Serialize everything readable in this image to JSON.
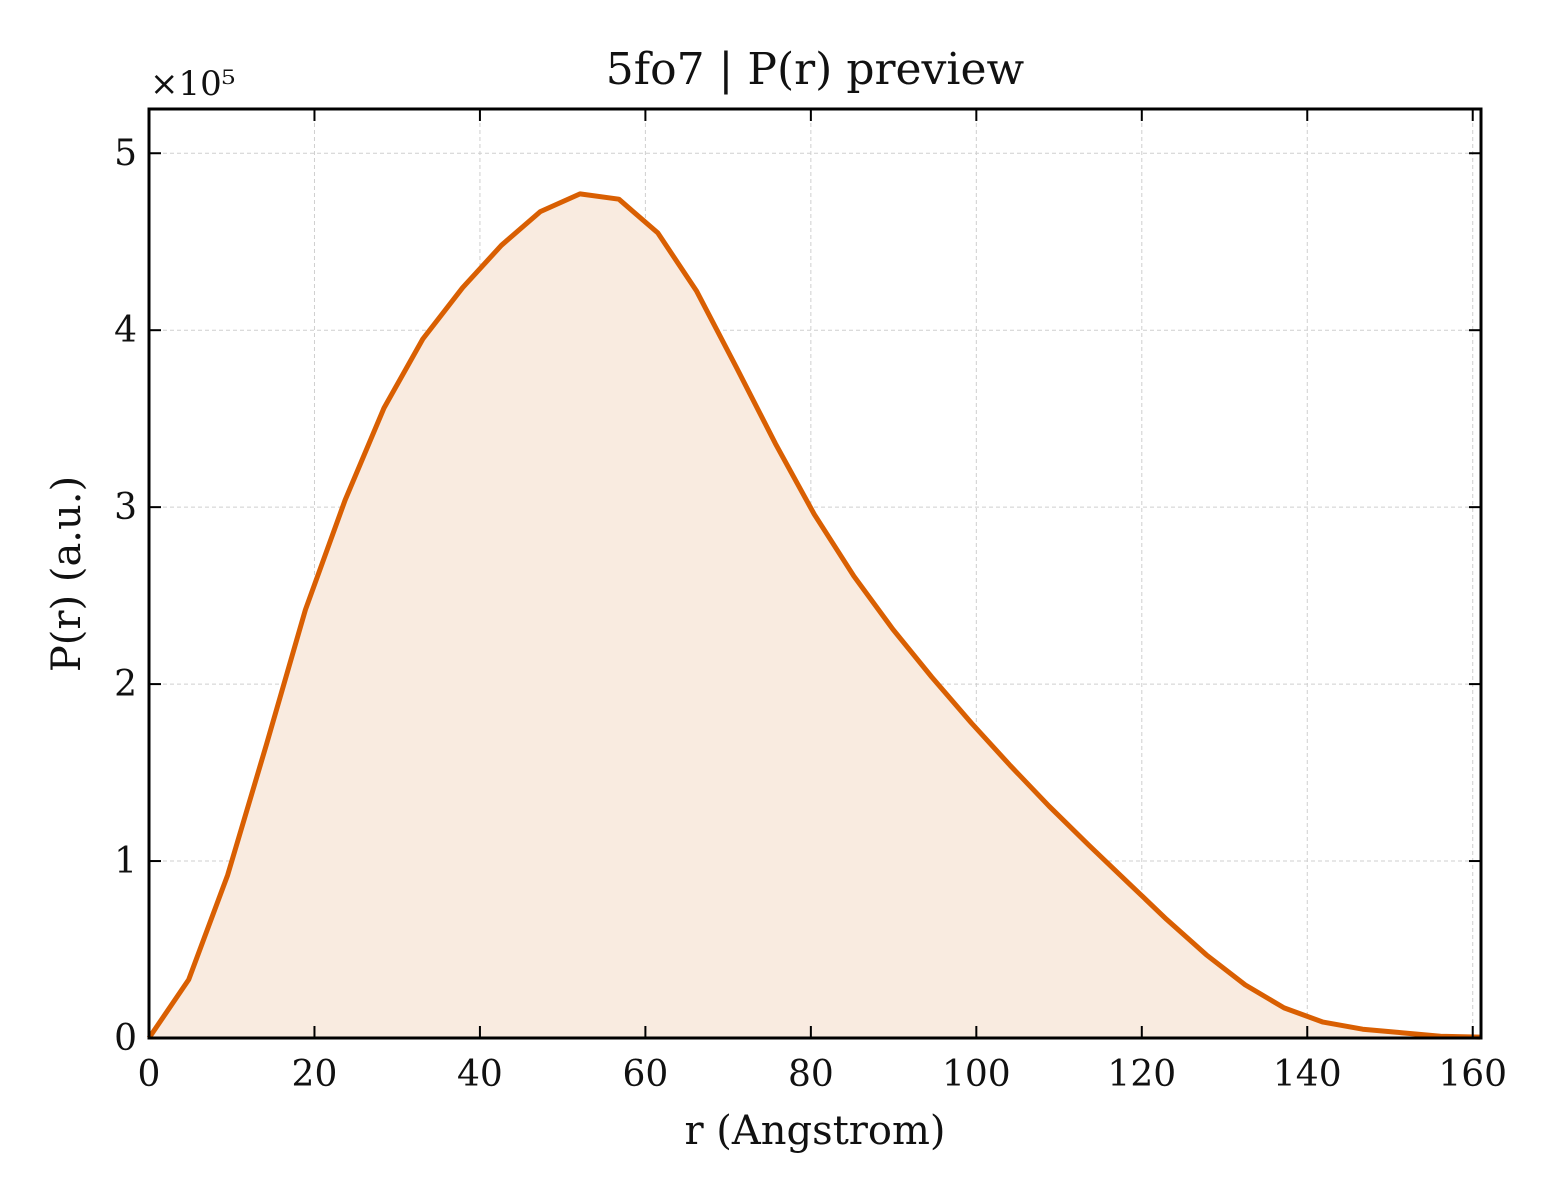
{
  "chart_data": {
    "type": "area",
    "title": "5fo7 | P(r) preview",
    "xlabel": "r (Angstrom)",
    "ylabel": "P(r) (a.u.)",
    "y_scale_label": "×10⁵",
    "xlim": [
      0,
      161
    ],
    "ylim": [
      0,
      525000
    ],
    "xticks": [
      0,
      20,
      40,
      60,
      80,
      100,
      120,
      140,
      160
    ],
    "yticks": [
      0,
      100000,
      200000,
      300000,
      400000,
      500000
    ],
    "ytick_labels": [
      "0",
      "1",
      "2",
      "3",
      "4",
      "5"
    ],
    "grid": true,
    "line_color": "#d95f02",
    "fill_color": "#f9ebe0",
    "series": [
      {
        "x": [
          0,
          4.8,
          9.5,
          14.2,
          18.9,
          23.7,
          28.4,
          33.1,
          37.9,
          42.6,
          47.3,
          52.1,
          56.8,
          61.5,
          66.2,
          71.0,
          75.7,
          80.4,
          85.2,
          89.9,
          94.6,
          99.4,
          104.1,
          108.8,
          113.6,
          118.3,
          123.0,
          127.8,
          132.5,
          137.2,
          141.9,
          146.7,
          151.4,
          156.1,
          160.9
        ],
        "y": [
          0,
          33000,
          92000,
          166000,
          242000,
          304000,
          356000,
          395000,
          424000,
          448000,
          467000,
          477000,
          474000,
          455000,
          422000,
          379000,
          336000,
          296000,
          261000,
          231000,
          204000,
          178000,
          154000,
          131000,
          109000,
          88000,
          67000,
          47000,
          30000,
          17000,
          9000,
          5000,
          3000,
          1000,
          500
        ]
      }
    ]
  }
}
